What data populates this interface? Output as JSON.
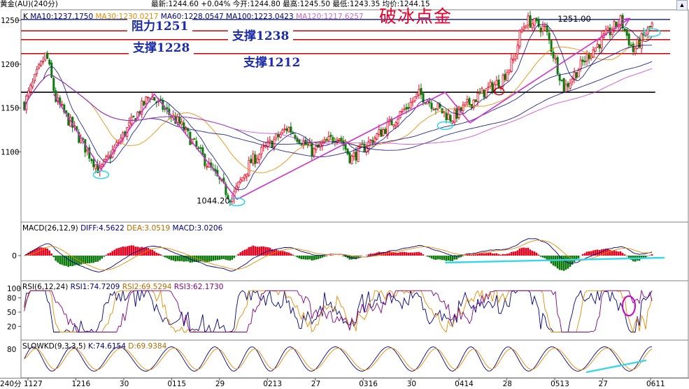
{
  "header": {
    "symbol": "黄金(AU)(240分)",
    "quote": "最新:1244.60 +0.04%  今开:1244.80  最高:1245.50  最低:1243.35  均价:1244.15",
    "scroll_icon": "up-arrow-icon"
  },
  "main_panel": {
    "k_label": "K",
    "ma_items": [
      {
        "text": "MA10:1237.1750",
        "color": "#000080"
      },
      {
        "text": "MA30:1230.0217",
        "color": "#e68a00"
      },
      {
        "text": "MA60:1228.0547",
        "color": "#000080"
      },
      {
        "text": "MA100:1223.0423",
        "color": "#000080"
      },
      {
        "text": "MA120:1217.6257",
        "color": "#cc66cc"
      }
    ],
    "annotation_title": "破冰点金",
    "level_labels": [
      "阻力1251",
      "支撑1238",
      "支撑1228",
      "支撑1212"
    ],
    "high_label": "1251.00",
    "low_label": "1044.20"
  },
  "macd_panel": {
    "title": "MACD(26,12,9)",
    "items": [
      {
        "text": "DIFF:4.5622",
        "color": "#000080"
      },
      {
        "text": "DEA:3.0519",
        "color": "#b36b00"
      },
      {
        "text": "MACD:3.0206",
        "color": "#000080"
      }
    ]
  },
  "rsi_panel": {
    "title": "RSI(6,12,24)",
    "items": [
      {
        "text": "RSI1:74.7209",
        "color": "#000080"
      },
      {
        "text": "RSI2:69.5294",
        "color": "#b36b00"
      },
      {
        "text": "RSI3:62.1730",
        "color": "#800080"
      }
    ]
  },
  "kd_panel": {
    "title": "SLOWKD(9,3,3,5)",
    "items": [
      {
        "text": "K:74.6154",
        "color": "#000080"
      },
      {
        "text": "D:69.9384",
        "color": "#b36b00"
      }
    ]
  },
  "footer": {
    "interval_label": "240分"
  },
  "colors": {
    "up": "#e8001c",
    "down": "#0b7a0b",
    "resistance": "#1a2b9a",
    "support": "#cc0000",
    "trend": "#cc33cc",
    "cyan": "#38d6e8",
    "ma_dark": "#000080",
    "ma_orange": "#e68a00"
  },
  "chart_data": [
    {
      "type": "candlestick",
      "title": "破冰点金",
      "xlabel": "",
      "ylabel": "",
      "ylim": [
        1020,
        1262
      ],
      "y_ticks": [
        1100,
        1150,
        1200,
        1250
      ],
      "x_tick_labels": [
        "1127",
        "1216",
        "30",
        "0115",
        "29",
        "0213",
        "27",
        "0316",
        "30",
        "0414",
        "28",
        "0513",
        "27",
        "0611"
      ],
      "price_path": [
        {
          "t": 0.0,
          "price": 1155
        },
        {
          "t": 0.02,
          "price": 1188
        },
        {
          "t": 0.035,
          "price": 1212
        },
        {
          "t": 0.05,
          "price": 1160
        },
        {
          "t": 0.12,
          "price": 1078
        },
        {
          "t": 0.2,
          "price": 1165
        },
        {
          "t": 0.25,
          "price": 1130
        },
        {
          "t": 0.33,
          "price": 1046
        },
        {
          "t": 0.36,
          "price": 1088
        },
        {
          "t": 0.42,
          "price": 1128
        },
        {
          "t": 0.46,
          "price": 1100
        },
        {
          "t": 0.5,
          "price": 1120
        },
        {
          "t": 0.52,
          "price": 1092
        },
        {
          "t": 0.58,
          "price": 1130
        },
        {
          "t": 0.63,
          "price": 1166
        },
        {
          "t": 0.68,
          "price": 1138
        },
        {
          "t": 0.72,
          "price": 1162
        },
        {
          "t": 0.76,
          "price": 1182
        },
        {
          "t": 0.78,
          "price": 1205
        },
        {
          "t": 0.79,
          "price": 1235
        },
        {
          "t": 0.8,
          "price": 1250
        },
        {
          "t": 0.83,
          "price": 1240
        },
        {
          "t": 0.86,
          "price": 1172
        },
        {
          "t": 0.9,
          "price": 1212
        },
        {
          "t": 0.95,
          "price": 1250
        },
        {
          "t": 0.97,
          "price": 1215
        },
        {
          "t": 1.0,
          "price": 1244.6
        }
      ],
      "horizontal_levels": [
        {
          "name": "阻力1251",
          "value": 1251,
          "kind": "resistance"
        },
        {
          "name": "支撑1238",
          "value": 1238,
          "kind": "support"
        },
        {
          "name": "支撑1228",
          "value": 1228,
          "kind": "support"
        },
        {
          "name": "支撑1212",
          "value": 1212,
          "kind": "support"
        },
        {
          "name": "",
          "value": 1168,
          "kind": "neutral"
        }
      ],
      "zigzag_points": [
        {
          "t": 0.05,
          "price": 1166
        },
        {
          "t": 0.123,
          "price": 1080
        },
        {
          "t": 0.205,
          "price": 1166
        },
        {
          "t": 0.332,
          "price": 1046
        },
        {
          "t": 0.652,
          "price": 1168
        },
        {
          "t": 0.69,
          "price": 1133
        }
      ],
      "arrow": {
        "from": {
          "t": 0.69,
          "price": 1133
        },
        "to": {
          "t": 1.06,
          "price": 1252
        }
      },
      "annotations": [
        {
          "text": "1251.00",
          "t": 0.825,
          "price": 1251
        },
        {
          "text": "1044.20",
          "t": 0.27,
          "price": 1044.2
        }
      ],
      "ma_last": {
        "MA10": 1237.175,
        "MA30": 1230.0217,
        "MA60": 1228.0547,
        "MA100": 1223.0423,
        "MA120": 1217.6257
      }
    },
    {
      "type": "bar",
      "title": "MACD(26,12,9)",
      "series": [
        {
          "name": "DIFF",
          "last": 4.5622
        },
        {
          "name": "DEA",
          "last": 3.0519
        },
        {
          "name": "MACD",
          "last": 3.0206
        }
      ],
      "y_ticks": [
        0
      ]
    },
    {
      "type": "line",
      "title": "RSI(6,12,24)",
      "series": [
        {
          "name": "RSI1",
          "last": 74.7209
        },
        {
          "name": "RSI2",
          "last": 69.5294
        },
        {
          "name": "RSI3",
          "last": 62.173
        }
      ],
      "ylim": [
        0,
        110
      ],
      "y_ticks": [
        20,
        50,
        80,
        100
      ]
    },
    {
      "type": "line",
      "title": "SLOWKD(9,3,3,5)",
      "series": [
        {
          "name": "K",
          "last": 74.6154
        },
        {
          "name": "D",
          "last": 69.9384
        }
      ],
      "ylim": [
        0,
        100
      ],
      "y_ticks": [
        80
      ]
    }
  ]
}
